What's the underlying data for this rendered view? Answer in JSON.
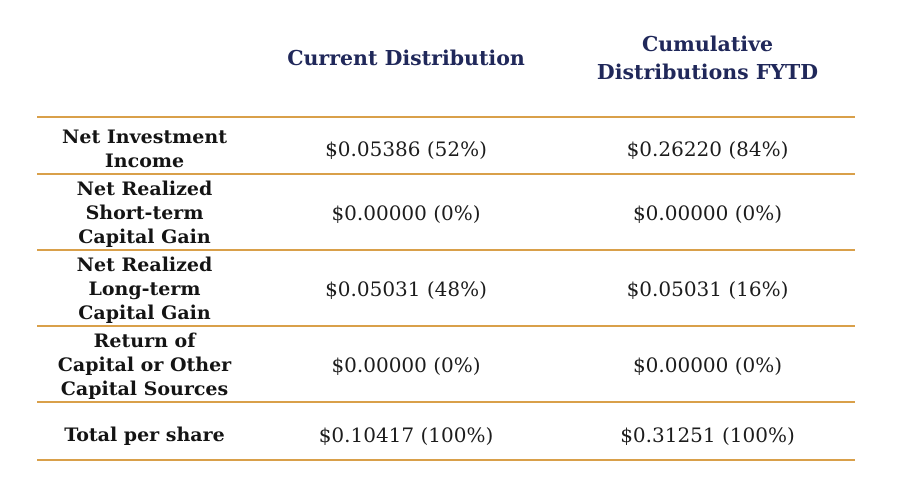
{
  "table": {
    "title": "Distribution sources table",
    "accent_line_color": "#D9A04A",
    "header_text_color": "#20285A",
    "body_text_color": "#1A1A1A",
    "columns": {
      "label": "",
      "current": "Current Distribution",
      "cumulative": "Cumulative\nDistributions FYTD"
    },
    "rows": [
      {
        "label": "Net Investment\nIncome",
        "current": "$0.05386 (52%)",
        "cumulative": "$0.26220 (84%)"
      },
      {
        "label": "Net Realized\nShort-term\nCapital Gain",
        "current": "$0.00000 (0%)",
        "cumulative": "$0.00000 (0%)"
      },
      {
        "label": "Net Realized\nLong-term\nCapital Gain",
        "current": "$0.05031 (48%)",
        "cumulative": "$0.05031 (16%)"
      },
      {
        "label": "Return of\nCapital or Other\nCapital Sources",
        "current": "$0.00000 (0%)",
        "cumulative": "$0.00000 (0%)"
      },
      {
        "label": "Total per share",
        "current": "$0.10417 (100%)",
        "cumulative": "$0.31251 (100%)"
      }
    ]
  }
}
